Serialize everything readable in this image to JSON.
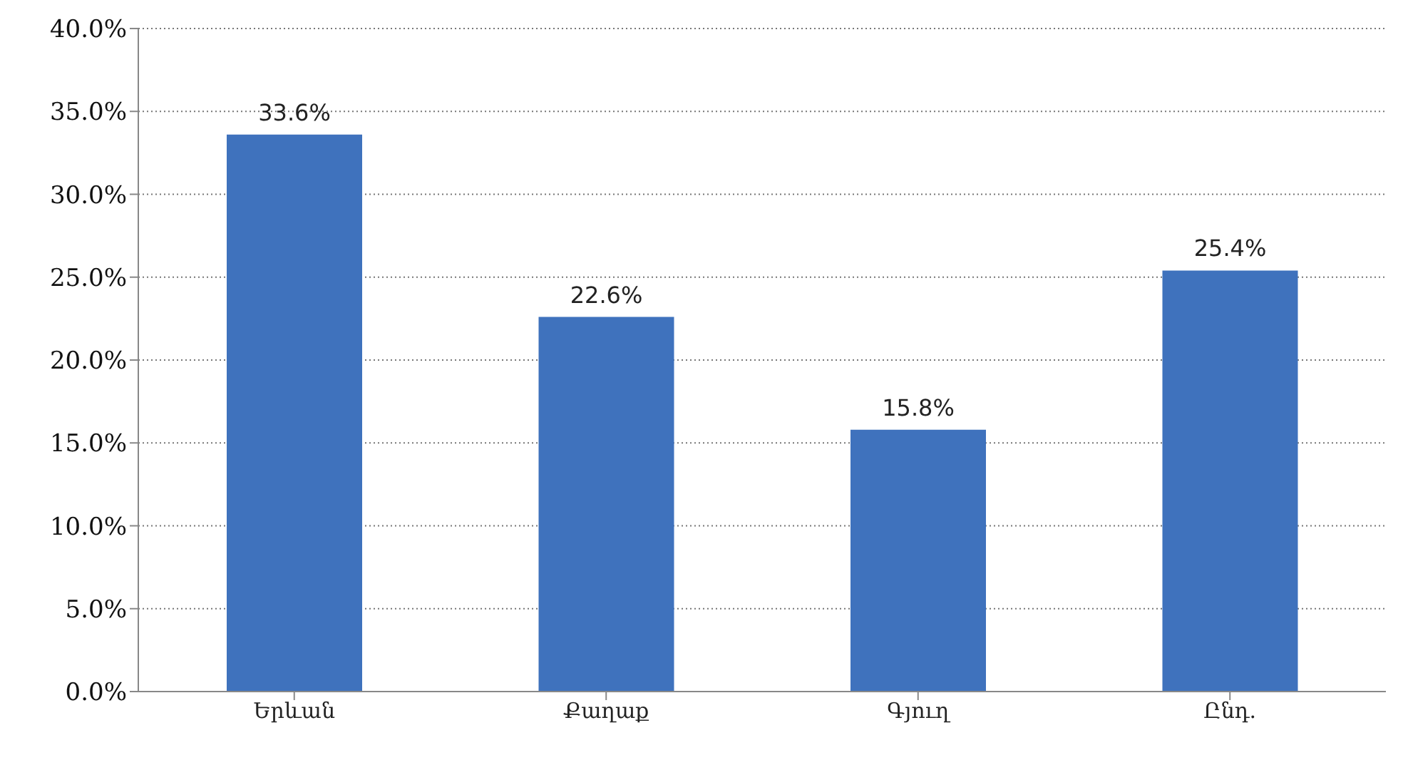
{
  "chart_data": {
    "type": "bar",
    "categories": [
      "Երևան",
      "Քաղաք",
      "Գյուղ",
      "Ընդ."
    ],
    "values": [
      33.6,
      22.6,
      15.8,
      25.4
    ],
    "color": "#3f72bd",
    "value_labels": [
      "33.6%",
      "22.6%",
      "15.8%",
      "25.4%"
    ],
    "ylim": [
      0,
      40
    ],
    "yticks": [
      {
        "value": 0,
        "label": "0.0%"
      },
      {
        "value": 5,
        "label": "5.0%"
      },
      {
        "value": 10,
        "label": "10.0%"
      },
      {
        "value": 15,
        "label": "15.0%"
      },
      {
        "value": 20,
        "label": "20.0%"
      },
      {
        "value": 25,
        "label": "25.0%"
      },
      {
        "value": 30,
        "label": "30.0%"
      },
      {
        "value": 35,
        "label": "35.0%"
      },
      {
        "value": 40,
        "label": "40.0%"
      }
    ],
    "grid": "y",
    "legend": false
  }
}
